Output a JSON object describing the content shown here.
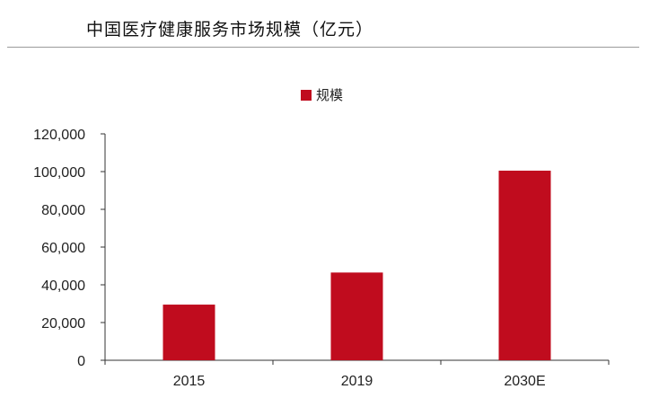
{
  "title": "中国医疗健康服务市场规模（亿元）",
  "chart_data": {
    "type": "bar",
    "categories": [
      "2015",
      "2019",
      "2030E"
    ],
    "series": [
      {
        "name": "规模",
        "values": [
          29500,
          46500,
          100500
        ],
        "color": "#c00c1e"
      }
    ],
    "ylim": [
      0,
      120000
    ],
    "yticks": [
      0,
      20000,
      40000,
      60000,
      80000,
      100000,
      120000
    ],
    "ytick_labels": [
      "0",
      "20,000",
      "40,000",
      "60,000",
      "80,000",
      "100,000",
      "120,000"
    ],
    "legend": "top-center",
    "grid": false,
    "xlabel": "",
    "ylabel": ""
  }
}
